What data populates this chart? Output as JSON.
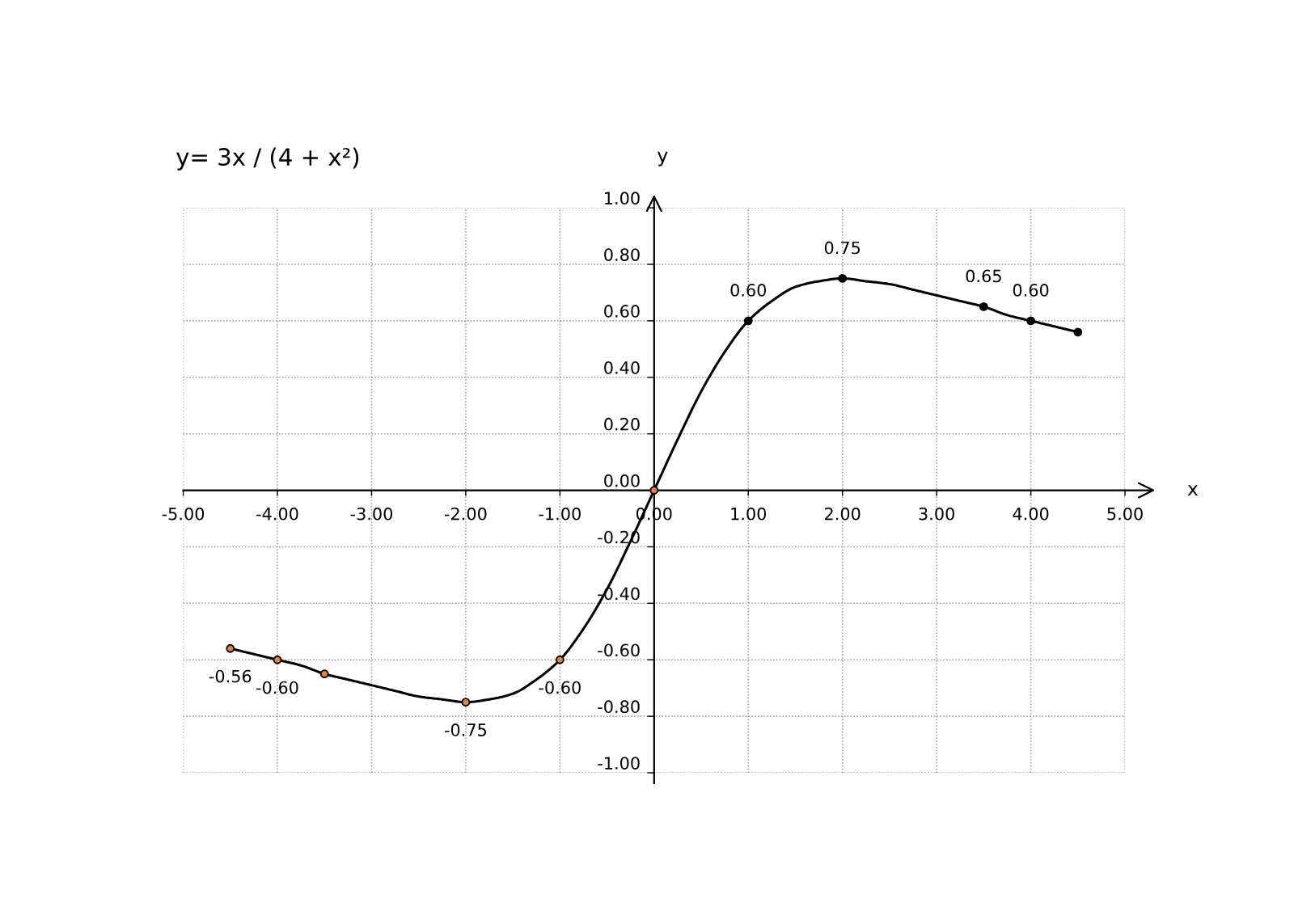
{
  "chart_data": {
    "type": "line",
    "title": "y= 3x / (4 + x²)",
    "xlabel": "x",
    "ylabel": "y",
    "xlim": [
      -5,
      5
    ],
    "ylim": [
      -1,
      1
    ],
    "xticks": [
      {
        "value": -5,
        "label": "-5.00"
      },
      {
        "value": -4,
        "label": "-4.00"
      },
      {
        "value": -3,
        "label": "-3.00"
      },
      {
        "value": -2,
        "label": "-2.00"
      },
      {
        "value": -1,
        "label": "-1.00"
      },
      {
        "value": 0,
        "label": "0.00"
      },
      {
        "value": 1,
        "label": "1.00"
      },
      {
        "value": 2,
        "label": "2.00"
      },
      {
        "value": 3,
        "label": "3.00"
      },
      {
        "value": 4,
        "label": "4.00"
      },
      {
        "value": 5,
        "label": "5.00"
      }
    ],
    "yticks": [
      {
        "value": -1,
        "label": "-1.00"
      },
      {
        "value": -0.8,
        "label": "-0.80"
      },
      {
        "value": -0.6,
        "label": "-0.60"
      },
      {
        "value": -0.4,
        "label": "-0.40"
      },
      {
        "value": -0.2,
        "label": "-0.20"
      },
      {
        "value": 0,
        "label": "0.00"
      },
      {
        "value": 0.2,
        "label": "0.20"
      },
      {
        "value": 0.4,
        "label": "0.40"
      },
      {
        "value": 0.6,
        "label": "0.60"
      },
      {
        "value": 0.8,
        "label": "0.80"
      },
      {
        "value": 1,
        "label": "1.00"
      }
    ],
    "grid": true,
    "series": [
      {
        "color": "#000000",
        "marker": "none",
        "line_style": "solid",
        "x": [
          -4.5,
          -4.25,
          -4,
          -3.75,
          -3.5,
          -3.25,
          -3,
          -2.75,
          -2.5,
          -2.25,
          -2,
          -1.75,
          -1.5,
          -1.25,
          -1,
          -0.75,
          -0.5,
          -0.25,
          0,
          0.25,
          0.5,
          0.75,
          1,
          1.25,
          1.5,
          1.75,
          2,
          2.25,
          2.5,
          2.75,
          3,
          3.25,
          3.5,
          3.75,
          4,
          4.25,
          4.5
        ],
        "values": [
          -0.56,
          -0.58,
          -0.6,
          -0.62,
          -0.65,
          -0.67,
          -0.69,
          -0.71,
          -0.73,
          -0.74,
          -0.75,
          -0.74,
          -0.72,
          -0.67,
          -0.6,
          -0.49,
          -0.35,
          -0.18,
          0,
          0.18,
          0.35,
          0.49,
          0.6,
          0.67,
          0.72,
          0.74,
          0.75,
          0.74,
          0.73,
          0.71,
          0.69,
          0.67,
          0.65,
          0.62,
          0.6,
          0.58,
          0.56
        ]
      },
      {
        "type": "scatter",
        "color": "#e8823f",
        "marker": "circle",
        "x": [
          -4.5,
          -4,
          -3.5,
          -2,
          -1,
          0
        ],
        "values": [
          -0.56,
          -0.6,
          -0.65,
          -0.75,
          -0.6,
          0
        ],
        "value_labels": [
          "-0.56",
          "-0.60",
          null,
          "-0.75",
          "-0.60",
          null
        ]
      },
      {
        "type": "scatter",
        "color": "#000000",
        "marker": "circle",
        "x": [
          1,
          2,
          3.5,
          4,
          4.5
        ],
        "values": [
          0.6,
          0.75,
          0.65,
          0.6,
          0.56
        ],
        "value_labels": [
          "0.60",
          "0.75",
          "0.65",
          "0.60",
          null
        ]
      }
    ]
  }
}
